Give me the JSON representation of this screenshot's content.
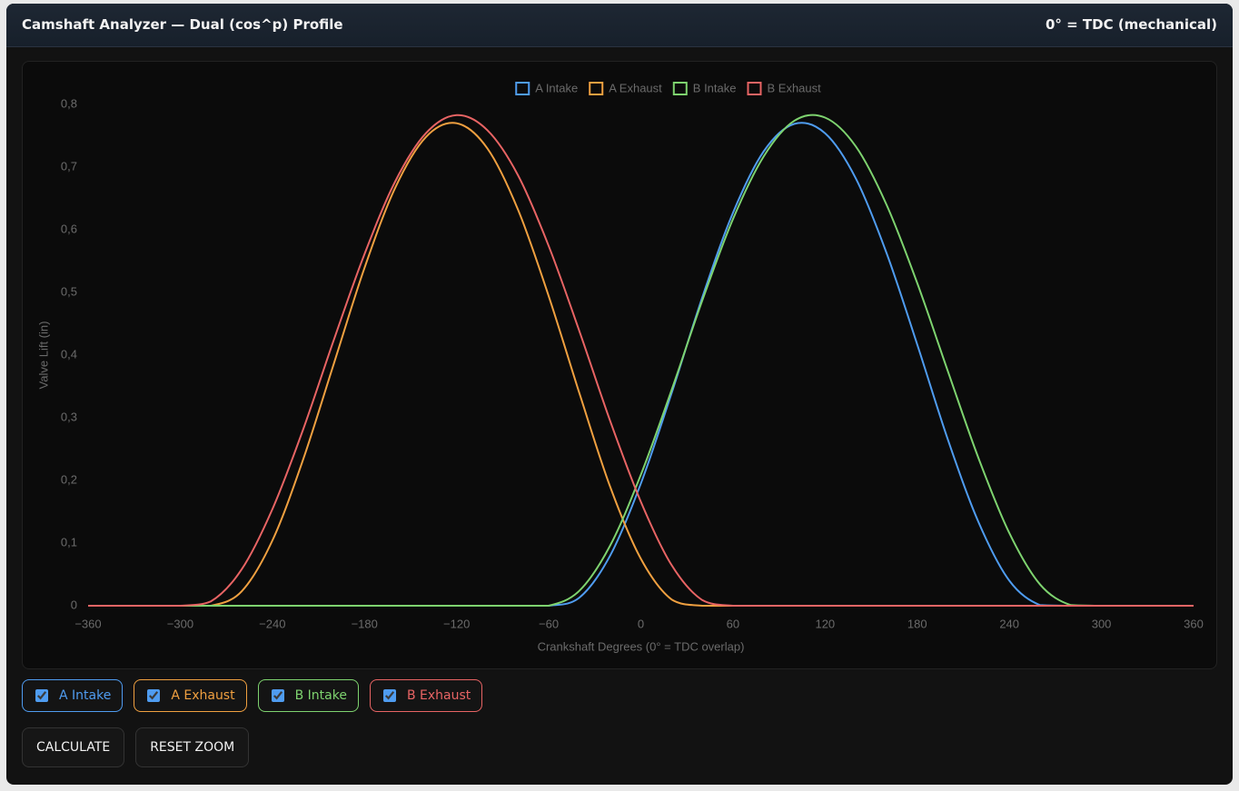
{
  "header": {
    "title": "Camshaft Analyzer — Dual (cos^p) Profile",
    "note": "0° = TDC (mechanical)"
  },
  "chart_data": {
    "type": "line",
    "legend": "top",
    "grid": false,
    "x_label": "Crankshaft Degrees (0° = TDC overlap)",
    "y_label": "Valve Lift (in)",
    "x": [
      -360,
      -340,
      -320,
      -300,
      -280,
      -260,
      -240,
      -220,
      -200,
      -180,
      -160,
      -140,
      -120,
      -100,
      -80,
      -60,
      -40,
      -20,
      0,
      20,
      40,
      60,
      80,
      100,
      120,
      140,
      160,
      180,
      200,
      220,
      240,
      260,
      280,
      300,
      320,
      340,
      360
    ],
    "series": [
      {
        "name": "A Intake",
        "color": "#4f9cf0",
        "values": [
          0,
          0,
          0,
          0,
          0,
          0,
          0,
          0,
          0,
          0,
          0,
          0,
          0,
          0,
          0,
          0,
          0.013,
          0.08,
          0.195,
          0.339,
          0.492,
          0.627,
          0.725,
          0.769,
          0.754,
          0.682,
          0.563,
          0.417,
          0.265,
          0.133,
          0.04,
          0.001,
          0,
          0,
          0,
          0,
          0
        ]
      },
      {
        "name": "A Exhaust",
        "color": "#f0a040",
        "values": [
          0,
          0,
          0,
          0,
          0,
          0.023,
          0.104,
          0.233,
          0.386,
          0.539,
          0.667,
          0.748,
          0.77,
          0.73,
          0.632,
          0.494,
          0.339,
          0.19,
          0.075,
          0.01,
          0,
          0,
          0,
          0,
          0,
          0,
          0,
          0,
          0,
          0,
          0,
          0,
          0,
          0,
          0,
          0,
          0
        ]
      },
      {
        "name": "B Intake",
        "color": "#7ed36f",
        "values": [
          0,
          0,
          0,
          0,
          0,
          0,
          0,
          0,
          0,
          0,
          0,
          0,
          0,
          0,
          0,
          0,
          0.024,
          0.096,
          0.209,
          0.344,
          0.487,
          0.617,
          0.717,
          0.774,
          0.779,
          0.733,
          0.64,
          0.515,
          0.374,
          0.235,
          0.116,
          0.034,
          0.001,
          0,
          0,
          0,
          0
        ]
      },
      {
        "name": "B Exhaust",
        "color": "#e86464",
        "values": [
          0,
          0,
          0,
          0,
          0.007,
          0.058,
          0.154,
          0.281,
          0.424,
          0.561,
          0.677,
          0.754,
          0.783,
          0.759,
          0.687,
          0.574,
          0.438,
          0.295,
          0.166,
          0.065,
          0.009,
          0,
          0,
          0,
          0,
          0,
          0,
          0,
          0,
          0,
          0,
          0,
          0,
          0,
          0,
          0,
          0
        ]
      }
    ],
    "xlim": [
      -360,
      360
    ],
    "xticks": [
      {
        "value": -360,
        "label": "−360"
      },
      {
        "value": -300,
        "label": "−300"
      },
      {
        "value": -240,
        "label": "−240"
      },
      {
        "value": -180,
        "label": "−180"
      },
      {
        "value": -120,
        "label": "−120"
      },
      {
        "value": -60,
        "label": "−60"
      },
      0,
      60,
      120,
      180,
      240,
      300,
      360
    ],
    "ylim": [
      0,
      0.8
    ],
    "yticks": [
      0,
      {
        "value": 0.1,
        "label": "0,1"
      },
      {
        "value": 0.2,
        "label": "0,2"
      },
      {
        "value": 0.3,
        "label": "0,3"
      },
      {
        "value": 0.4,
        "label": "0,4"
      },
      {
        "value": 0.5,
        "label": "0,5"
      },
      {
        "value": 0.6,
        "label": "0,6"
      },
      {
        "value": 0.7,
        "label": "0,7"
      },
      {
        "value": 0.8,
        "label": "0,8"
      }
    ]
  },
  "toggles": [
    {
      "label": "A Intake",
      "checked": true
    },
    {
      "label": "A Exhaust",
      "checked": true
    },
    {
      "label": "B Intake",
      "checked": true
    },
    {
      "label": "B Exhaust",
      "checked": true
    }
  ],
  "buttons": [
    "CALCULATE",
    "RESET ZOOM"
  ]
}
